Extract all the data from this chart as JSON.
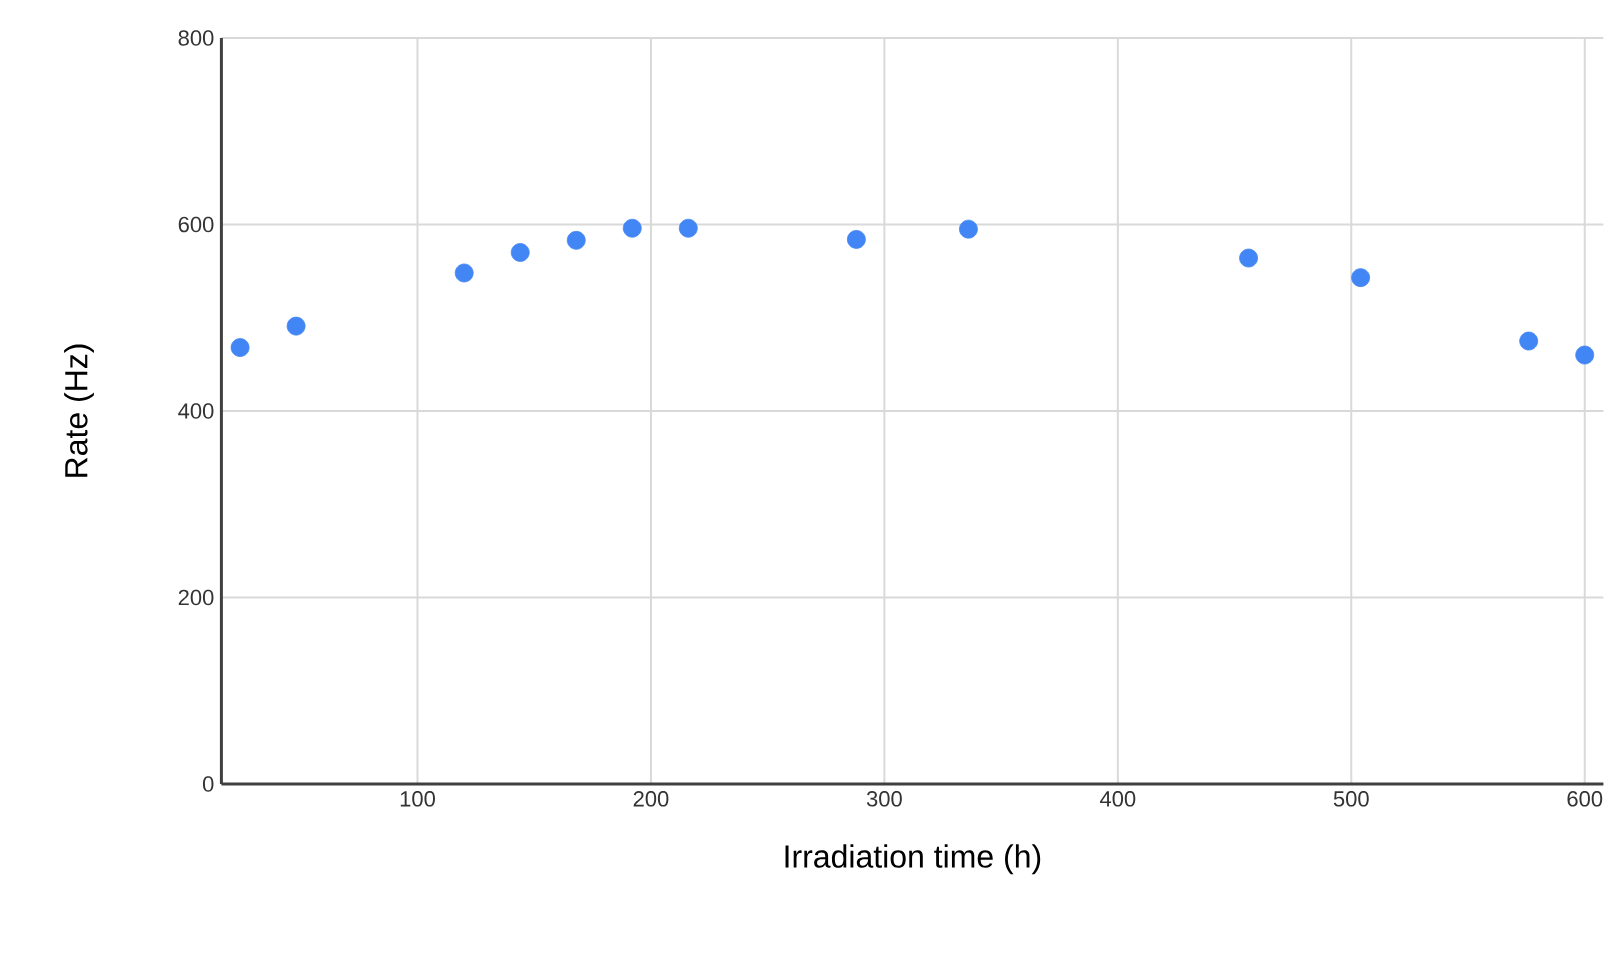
{
  "chart_data": {
    "type": "scatter",
    "xlabel": "Irradiation time (h)",
    "ylabel": "Rate (Hz)",
    "x": [
      24,
      48,
      120,
      144,
      168,
      192,
      216,
      288,
      336,
      456,
      504,
      576,
      600
    ],
    "values": [
      468,
      491,
      548,
      570,
      583,
      596,
      596,
      584,
      595,
      564,
      543,
      475,
      460
    ],
    "color": "#4285f4",
    "xlim": [
      16,
      608
    ],
    "xticks": [
      100,
      200,
      300,
      400,
      500,
      600
    ],
    "ylim": [
      0,
      800
    ],
    "yticks": [
      0,
      200,
      400,
      600,
      800
    ],
    "grid": true
  }
}
